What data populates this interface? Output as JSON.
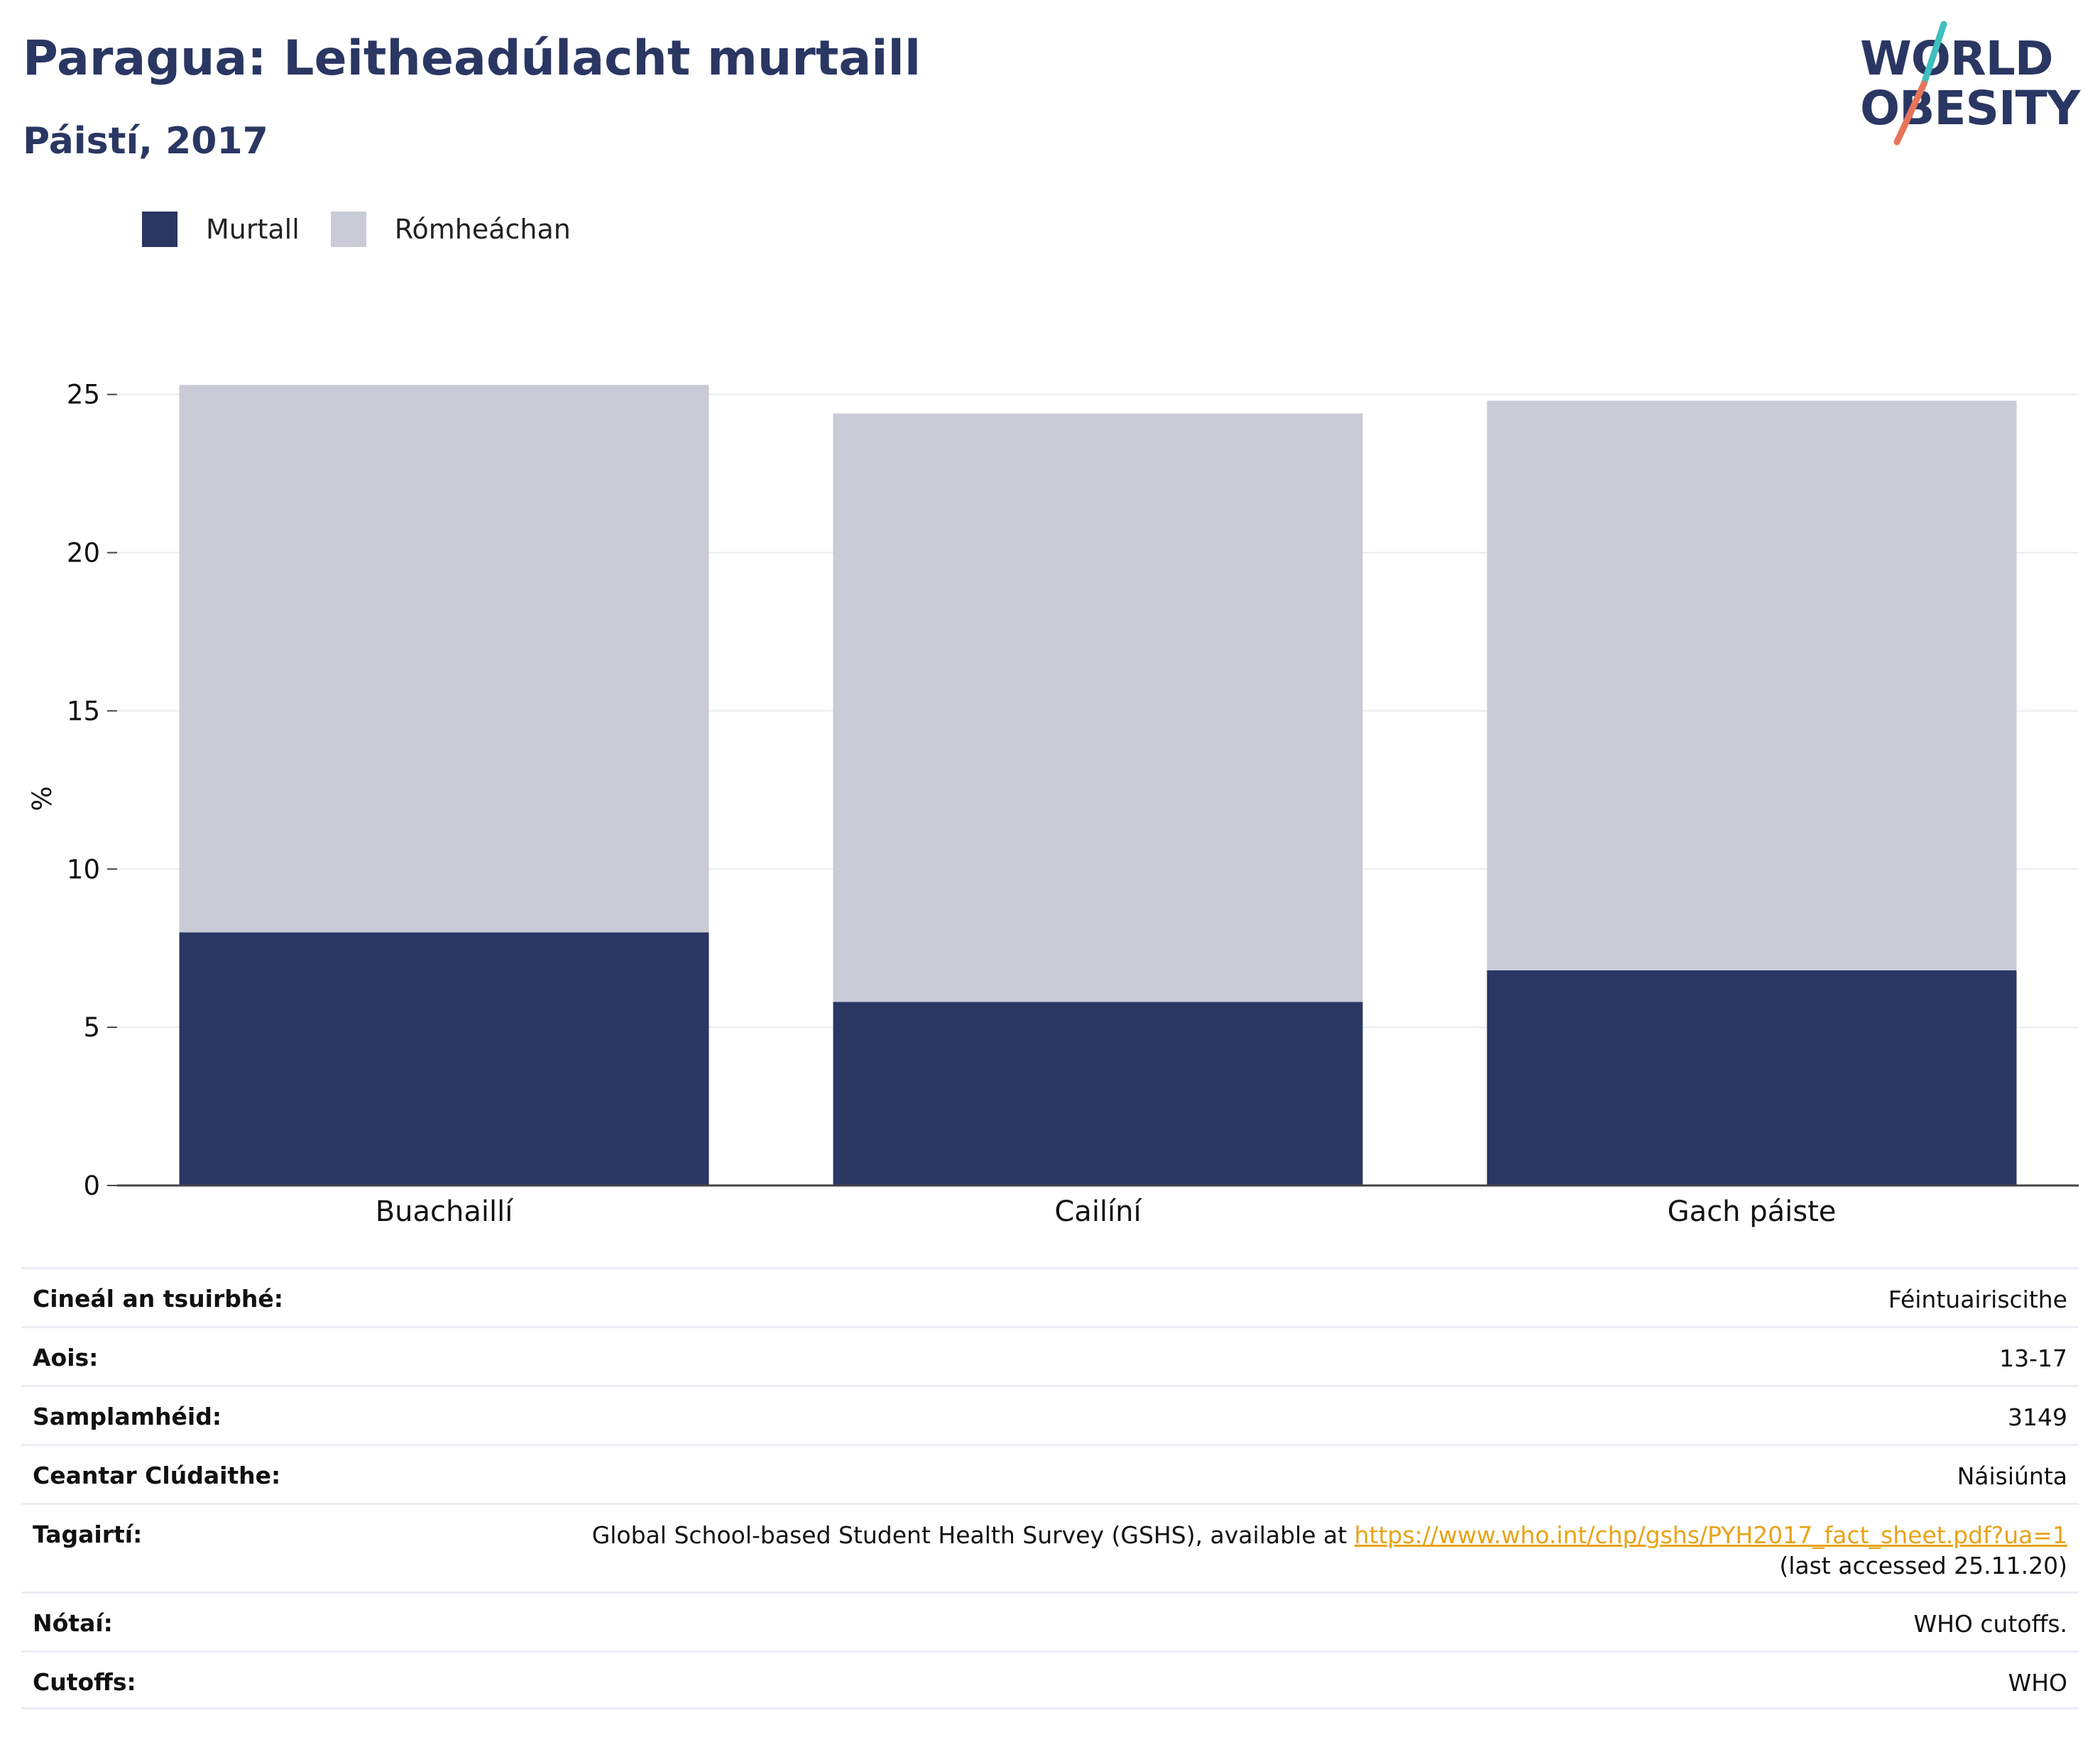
{
  "header": {
    "title": "Paragua: Leitheadúlacht murtaill",
    "subtitle": "Páistí, 2017"
  },
  "logo": {
    "line1": "WORLD",
    "line2": "OBESITY",
    "slash_colors": [
      "#3fbfbf",
      "#e8735a"
    ]
  },
  "colors": {
    "obese": "#2a3763",
    "overweight": "#c9cbd7",
    "grid": "#e9ebf0",
    "axis": "#444444",
    "link": "#e8a317"
  },
  "chart_data": {
    "type": "bar",
    "stacked": true,
    "categories": [
      "Buachaillí",
      "Cailíní",
      "Gach páiste"
    ],
    "series": [
      {
        "name": "Murtall",
        "values": [
          8.0,
          5.8,
          6.8
        ]
      },
      {
        "name": "Rómheáchan",
        "values": [
          17.3,
          18.6,
          18.0
        ]
      }
    ],
    "title": "Paragua: Leitheadúlacht murtaill",
    "subtitle": "Páistí, 2017",
    "xlabel": "",
    "ylabel": "%",
    "ylim": [
      0,
      25.8
    ],
    "yticks": [
      0,
      5,
      10,
      15,
      20,
      25
    ],
    "grid": true,
    "legend": "top-left"
  },
  "meta": {
    "rows": [
      {
        "label": "Cineál an tsuirbhé:",
        "value": "Féintuairiscithe"
      },
      {
        "label": "Aois:",
        "value": "13-17"
      },
      {
        "label": "Samplamhéid:",
        "value": "3149"
      },
      {
        "label": "Ceantar Clúdaithe:",
        "value": "Náisiúnta"
      },
      {
        "label": "Tagairtí:",
        "value_before": "Global School-based Student Health Survey (GSHS), available at ",
        "link": "https://www.who.int/chp/gshs/PYH2017_fact_sheet.pdf?ua=1",
        "value_after": " (last accessed 25.11.20)"
      },
      {
        "label": "Nótaí:",
        "value": "WHO cutoffs."
      },
      {
        "label": "Cutoffs:",
        "value": "WHO"
      }
    ]
  }
}
